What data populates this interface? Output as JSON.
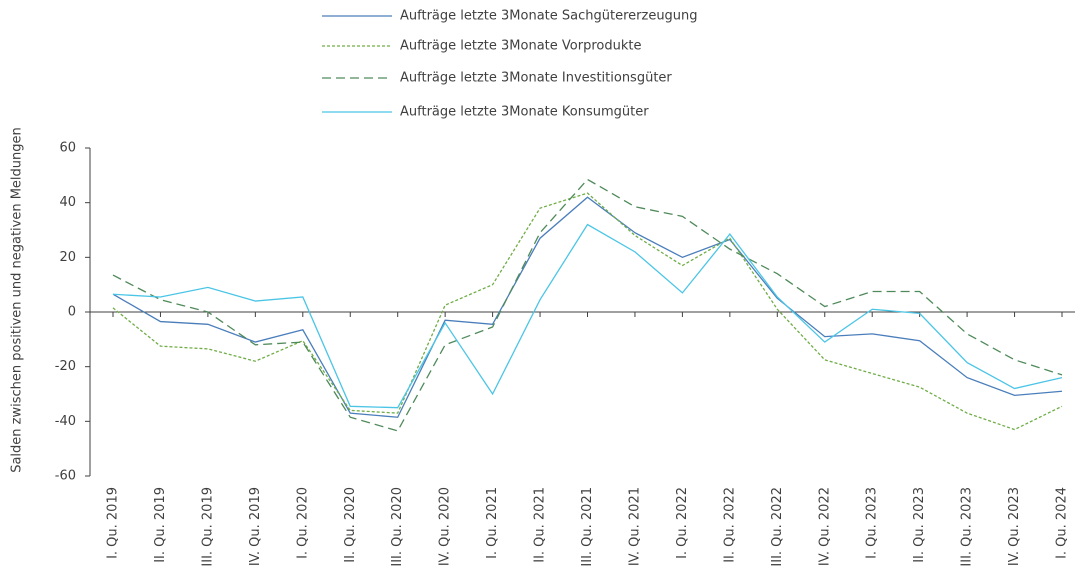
{
  "chart_data": {
    "type": "line",
    "y_label": "Salden zwischen positiven und negativen Meldungen",
    "categories": [
      "I. Qu. 2019",
      "II. Qu. 2019",
      "III. Qu. 2019",
      "IV. Qu. 2019",
      "I. Qu. 2020",
      "II. Qu. 2020",
      "III. Qu. 2020",
      "IV. Qu. 2020",
      "I. Qu. 2021",
      "II. Qu. 2021",
      "III. Qu. 2021",
      "IV. Qu. 2021",
      "I. Qu. 2022",
      "II. Qu. 2022",
      "III. Qu. 2022",
      "IV. Qu. 2022",
      "I. Qu. 2023",
      "II. Qu. 2023",
      "III. Qu. 2023",
      "IV. Qu. 2023",
      "I. Qu. 2024"
    ],
    "series": [
      {
        "name": "Aufträge letzte 3Monate Sachgütererzeugung",
        "color": "#4a7ebb",
        "dash": "solid",
        "values": [
          6.5,
          -3.5,
          -4.5,
          -11,
          -6.5,
          -37,
          -38.5,
          -3,
          -4.5,
          27,
          42,
          29,
          20,
          26.5,
          5,
          -9,
          -8,
          -10.5,
          -24,
          -30.5,
          -29
        ]
      },
      {
        "name": "Aufträge letzte 3Monate Vorprodukte",
        "color": "#70ad47",
        "dash": "dotted",
        "values": [
          1.5,
          -12.5,
          -13.5,
          -18,
          -10.5,
          -36,
          -37,
          2.5,
          10,
          38,
          43.5,
          28,
          17,
          27,
          1,
          -17.5,
          -22.5,
          -27.5,
          -37,
          -43,
          -34.5
        ]
      },
      {
        "name": "Aufträge letzte 3Monate Investitionsgüter",
        "color": "#4f8a5a",
        "dash": "dashed",
        "values": [
          13.5,
          4.5,
          0,
          -12,
          -11,
          -38.5,
          -43.5,
          -12,
          -5.5,
          29,
          48.5,
          38.5,
          35,
          23,
          14,
          2,
          7.5,
          7.5,
          -8,
          -17.5,
          -23
        ]
      },
      {
        "name": "Aufträge letzte 3Monate Konsumgüter",
        "color": "#4bc5e6",
        "dash": "solid",
        "values": [
          6.5,
          5.5,
          9,
          4,
          5.5,
          -34.5,
          -35,
          -4,
          -30,
          4.5,
          32,
          22,
          7,
          28.5,
          5.5,
          -11,
          1,
          -0.5,
          -18.5,
          -28,
          -24
        ]
      }
    ],
    "ylim": [
      -60,
      60
    ],
    "yticks": [
      -60,
      -40,
      -20,
      0,
      20,
      40,
      60
    ],
    "grid": false,
    "legend": "top"
  }
}
